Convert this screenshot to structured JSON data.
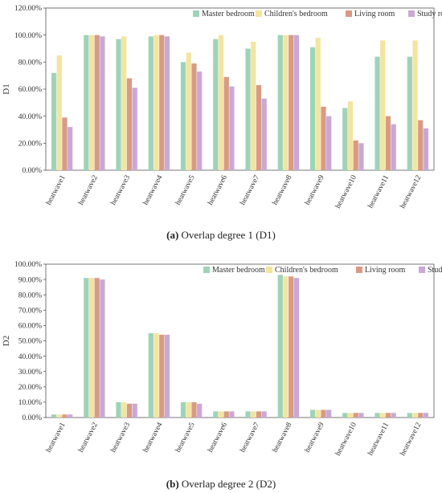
{
  "colors": {
    "Master bedroom": "#9fd3b8",
    "Children's bedroom": "#f3e5a0",
    "Living room": "#d99a85",
    "Study room": "#c8a9d6"
  },
  "chart_data": [
    {
      "type": "bar",
      "categories": [
        "heatwave1",
        "heatwave2",
        "heatwave3",
        "heatwave4",
        "heatwave5",
        "heatwave6",
        "heatwave7",
        "heatwave8",
        "heatwave9",
        "heatwave10",
        "heatwave11",
        "heatwave12"
      ],
      "series": [
        {
          "name": "Master bedroom",
          "values": [
            72,
            100,
            97,
            99,
            80,
            97,
            90,
            100,
            91,
            46,
            84,
            84
          ]
        },
        {
          "name": "Children's bedroom",
          "values": [
            85,
            100,
            99,
            100,
            87,
            100,
            95,
            100,
            98,
            51,
            96,
            96
          ]
        },
        {
          "name": "Living room",
          "values": [
            39,
            100,
            68,
            100,
            79,
            69,
            63,
            100,
            47,
            22,
            40,
            37
          ]
        },
        {
          "name": "Study room",
          "values": [
            32,
            99,
            61,
            99,
            73,
            62,
            53,
            100,
            40,
            20,
            34,
            31
          ]
        }
      ],
      "ylabel": "D1",
      "ylim": [
        0,
        120
      ],
      "yticks": [
        "0.00%",
        "20.00%",
        "40.00%",
        "60.00%",
        "80.00%",
        "100.00%",
        "120.00%"
      ],
      "grid": false,
      "legend": "top-right",
      "caption_label": "(a)",
      "caption_text": "Overlap degree 1 (D1)"
    },
    {
      "type": "bar",
      "categories": [
        "heatwave1",
        "heatwave2",
        "heatwave3",
        "heatwave4",
        "heatwave5",
        "heatwave6",
        "heatwave7",
        "heatwave8",
        "heatwave9",
        "heatwave10",
        "heatwave11",
        "heatwave12"
      ],
      "series": [
        {
          "name": "Master bedroom",
          "values": [
            2,
            91,
            10,
            55,
            10,
            4,
            4,
            93,
            5,
            3,
            3,
            3
          ]
        },
        {
          "name": "Children's bedroom",
          "values": [
            2,
            91,
            10,
            55,
            10,
            4,
            4,
            92,
            5,
            3,
            3,
            3
          ]
        },
        {
          "name": "Living room",
          "values": [
            2,
            91,
            9,
            54,
            10,
            4,
            4,
            92,
            5,
            3,
            3,
            3
          ]
        },
        {
          "name": "Study room",
          "values": [
            2,
            90,
            9,
            54,
            9,
            4,
            4,
            91,
            5,
            3,
            3,
            3
          ]
        }
      ],
      "ylabel": "D2",
      "ylim": [
        0,
        100
      ],
      "yticks": [
        "0.00%",
        "10.00%",
        "20.00%",
        "30.00%",
        "40.00%",
        "50.00%",
        "60.00%",
        "70.00%",
        "80.00%",
        "90.00%",
        "100.00%"
      ],
      "grid": false,
      "legend": "top-right",
      "caption_label": "(b)",
      "caption_text": "Overlap degree 2 (D2)"
    }
  ]
}
